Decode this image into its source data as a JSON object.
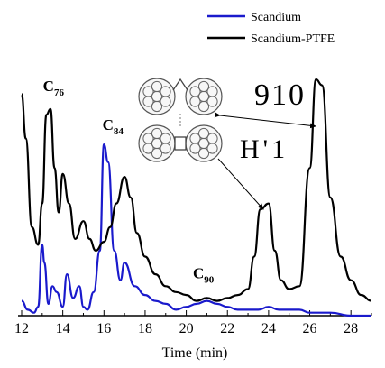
{
  "chart_data": {
    "type": "line",
    "xlabel": "Time (min)",
    "ylabel": "",
    "xlim": [
      12,
      29
    ],
    "x_ticks": [
      12,
      14,
      16,
      18,
      20,
      22,
      24,
      26,
      28
    ],
    "y_axis_shown": false,
    "grid": false,
    "legend_position": "top-right",
    "legend": [
      "Scandium",
      "Scandium-PTFE"
    ],
    "colors": {
      "Scandium": "#1a1acc",
      "Scandium-PTFE": "#000000"
    },
    "series": [
      {
        "name": "Scandium",
        "x": [
          12.0,
          12.3,
          12.6,
          12.8,
          13.0,
          13.1,
          13.3,
          13.5,
          13.7,
          14.0,
          14.2,
          14.5,
          14.8,
          15.0,
          15.2,
          15.5,
          15.8,
          16.0,
          16.2,
          16.5,
          16.8,
          17.0,
          17.5,
          18.0,
          18.5,
          19.0,
          19.5,
          20.0,
          20.5,
          21.0,
          21.5,
          22.0,
          22.5,
          23.0,
          23.5,
          24.0,
          24.5,
          25.0,
          25.5,
          26.0,
          27.0,
          28.0,
          29.0
        ],
        "y": [
          5,
          2,
          1,
          3,
          24,
          18,
          4,
          10,
          8,
          3,
          14,
          6,
          10,
          3,
          2,
          8,
          22,
          58,
          52,
          22,
          12,
          18,
          10,
          7,
          5,
          4,
          2,
          3,
          4,
          5,
          4,
          3,
          2,
          2,
          2,
          3,
          2,
          2,
          2,
          1,
          1,
          0,
          0
        ]
      },
      {
        "name": "Scandium-PTFE",
        "x": [
          12.0,
          12.2,
          12.5,
          12.8,
          13.0,
          13.2,
          13.4,
          13.6,
          13.8,
          14.0,
          14.3,
          14.6,
          15.0,
          15.3,
          15.6,
          16.0,
          16.3,
          16.6,
          17.0,
          17.3,
          17.6,
          18.0,
          18.5,
          19.0,
          19.5,
          20.0,
          20.5,
          21.0,
          21.5,
          22.0,
          22.5,
          23.0,
          23.3,
          23.6,
          24.0,
          24.3,
          24.6,
          25.0,
          25.5,
          26.0,
          26.3,
          26.6,
          27.0,
          27.5,
          28.0,
          28.5,
          29.0
        ],
        "y": [
          75,
          60,
          30,
          24,
          38,
          68,
          70,
          50,
          35,
          48,
          38,
          26,
          32,
          26,
          22,
          25,
          30,
          38,
          47,
          40,
          28,
          20,
          14,
          10,
          8,
          7,
          5,
          6,
          5,
          6,
          7,
          9,
          20,
          36,
          38,
          22,
          12,
          9,
          10,
          50,
          80,
          78,
          40,
          20,
          12,
          7,
          5
        ]
      }
    ],
    "annotations": [
      {
        "text": "C",
        "sub": "76",
        "x": 13.3,
        "y": 70
      },
      {
        "text": "C",
        "sub": "84",
        "x": 16.1,
        "y": 58
      },
      {
        "text": "C",
        "sub": "90",
        "x": 20.5,
        "y": 6
      }
    ]
  },
  "inset": {
    "description_icon": "fullerene-molecule-structures-icon",
    "handwritten_labels": [
      "910",
      "H'1"
    ]
  }
}
